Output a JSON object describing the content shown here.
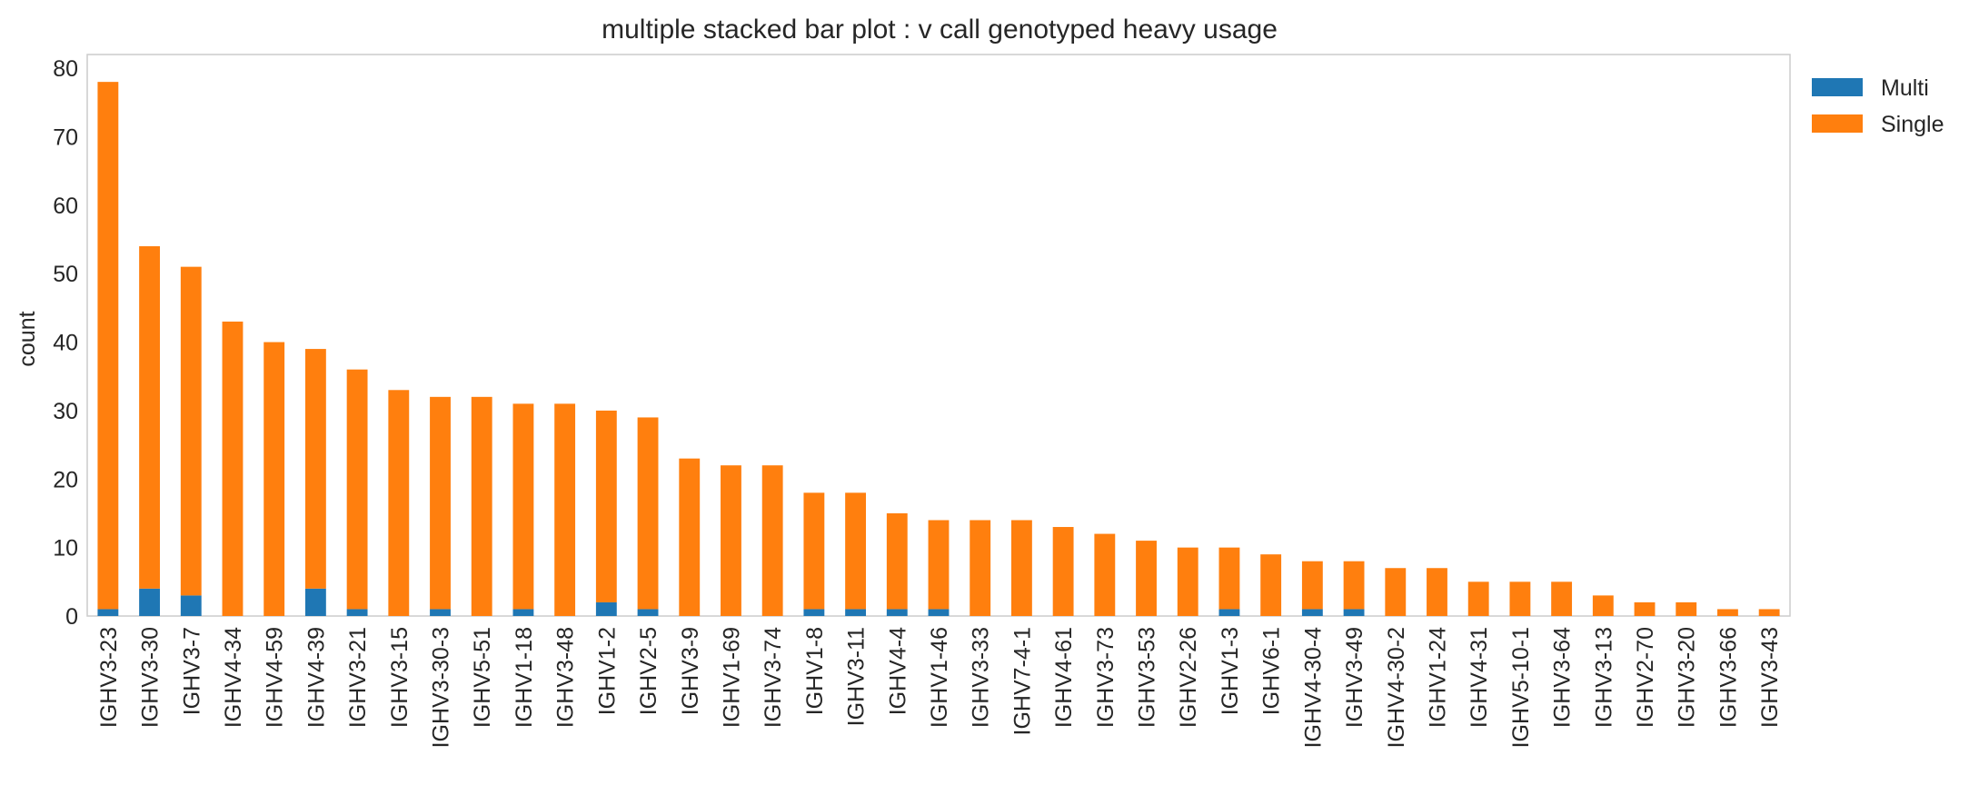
{
  "chart_data": {
    "type": "bar",
    "stacked": true,
    "title": "multiple stacked bar plot : v call genotyped heavy usage",
    "xlabel": "",
    "ylabel": "count",
    "ylim": [
      0,
      82
    ],
    "yticks": [
      0,
      10,
      20,
      30,
      40,
      50,
      60,
      70,
      80
    ],
    "grid": false,
    "legend_position": "outside top-right",
    "categories": [
      "IGHV3-23",
      "IGHV3-30",
      "IGHV3-7",
      "IGHV4-34",
      "IGHV4-59",
      "IGHV4-39",
      "IGHV3-21",
      "IGHV3-15",
      "IGHV3-30-3",
      "IGHV5-51",
      "IGHV1-18",
      "IGHV3-48",
      "IGHV1-2",
      "IGHV2-5",
      "IGHV3-9",
      "IGHV1-69",
      "IGHV3-74",
      "IGHV1-8",
      "IGHV3-11",
      "IGHV4-4",
      "IGHV1-46",
      "IGHV3-33",
      "IGHV7-4-1",
      "IGHV4-61",
      "IGHV3-73",
      "IGHV3-53",
      "IGHV2-26",
      "IGHV1-3",
      "IGHV6-1",
      "IGHV4-30-4",
      "IGHV3-49",
      "IGHV4-30-2",
      "IGHV1-24",
      "IGHV4-31",
      "IGHV5-10-1",
      "IGHV3-64",
      "IGHV3-13",
      "IGHV2-70",
      "IGHV3-20",
      "IGHV3-66",
      "IGHV3-43"
    ],
    "series": [
      {
        "name": "Multi",
        "color": "#1f77b4",
        "values": [
          1,
          4,
          3,
          0,
          0,
          4,
          1,
          0,
          1,
          0,
          1,
          0,
          2,
          1,
          0,
          0,
          0,
          1,
          1,
          1,
          1,
          0,
          0,
          0,
          0,
          0,
          0,
          1,
          0,
          1,
          1,
          0,
          0,
          0,
          0,
          0,
          0,
          0,
          0,
          0,
          0
        ]
      },
      {
        "name": "Single",
        "color": "#ff7f0e",
        "values": [
          77,
          50,
          48,
          43,
          40,
          35,
          35,
          33,
          31,
          32,
          30,
          31,
          28,
          28,
          23,
          22,
          22,
          17,
          17,
          14,
          13,
          14,
          14,
          13,
          12,
          11,
          10,
          9,
          9,
          7,
          7,
          7,
          7,
          5,
          5,
          5,
          3,
          2,
          2,
          1,
          1
        ]
      }
    ]
  }
}
